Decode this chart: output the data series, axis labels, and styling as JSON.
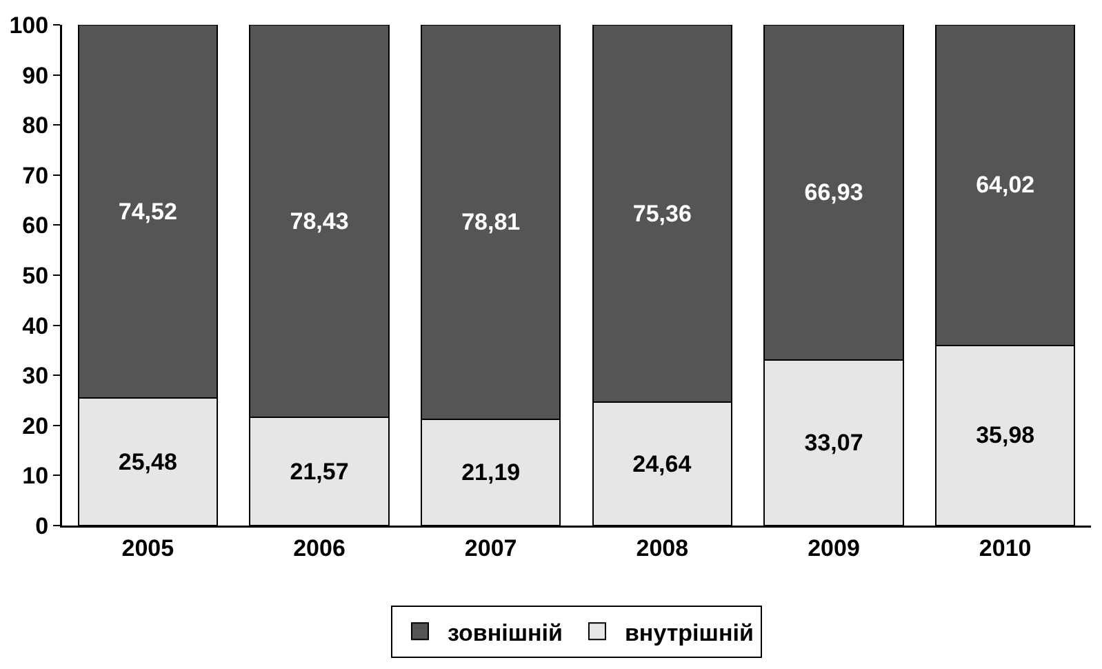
{
  "chart_data": {
    "type": "bar",
    "stacked": true,
    "categories": [
      "2005",
      "2006",
      "2007",
      "2008",
      "2009",
      "2010"
    ],
    "series": [
      {
        "name": "внутрішній",
        "color": "#e6e6e6",
        "values": [
          25.48,
          21.57,
          21.19,
          24.64,
          33.07,
          35.98
        ],
        "value_labels": [
          "25,48",
          "21,57",
          "21,19",
          "24,64",
          "33,07",
          "35,98"
        ]
      },
      {
        "name": "зовнішній",
        "color": "#555555",
        "values": [
          74.52,
          78.43,
          78.81,
          75.36,
          66.93,
          64.02
        ],
        "value_labels": [
          "74,52",
          "78,43",
          "78,81",
          "75,36",
          "66,93",
          "64,02"
        ]
      }
    ],
    "ylim": [
      0,
      100
    ],
    "yticks": [
      0,
      10,
      20,
      30,
      40,
      50,
      60,
      70,
      80,
      90,
      100
    ],
    "grid": false,
    "legend": "bottom"
  }
}
